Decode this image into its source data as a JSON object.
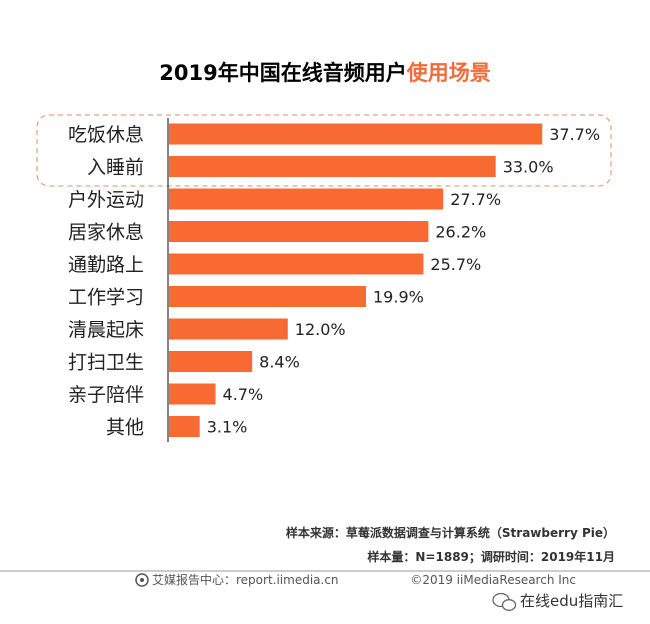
{
  "title": {
    "prefix": "2019年中国在线音频用户",
    "highlight": "使用场景"
  },
  "colors": {
    "bar": "#F96A33",
    "accent": "#F26B3A",
    "highlight_box": "#E8A384",
    "axis": "#333333"
  },
  "chart_data": {
    "type": "bar",
    "orientation": "horizontal",
    "categories": [
      "吃饭休息",
      "入睡前",
      "户外运动",
      "居家休息",
      "通勤路上",
      "工作学习",
      "清晨起床",
      "打扫卫生",
      "亲子陪伴",
      "其他"
    ],
    "values": [
      37.7,
      33.0,
      27.7,
      26.2,
      25.7,
      19.9,
      12.0,
      8.4,
      4.7,
      3.1
    ],
    "value_labels": [
      "37.7%",
      "33.0%",
      "27.7%",
      "26.2%",
      "25.7%",
      "19.9%",
      "12.0%",
      "8.4%",
      "4.7%",
      "3.1%"
    ],
    "xlim": [
      0,
      40
    ],
    "highlighted_categories": [
      "吃饭休息",
      "入睡前"
    ],
    "grid": false,
    "legend": "none"
  },
  "notes": {
    "source": "样本来源：草莓派数据调查与计算系统（Strawberry Pie）",
    "sample": "样本量：N=1889；调研时间：2019年11月"
  },
  "footer": {
    "brand": "艾媒报告中心：report.iimedia.cn",
    "copyright": "©2019  iiMediaResearch  Inc"
  },
  "watermark": {
    "text": "在线edu指南汇",
    "icon": "wechat-icon"
  }
}
